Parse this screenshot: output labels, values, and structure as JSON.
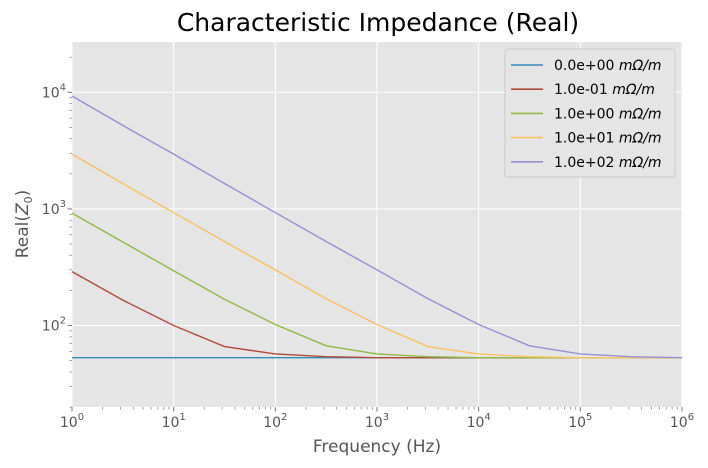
{
  "chart_data": {
    "type": "line",
    "title": "Characteristic Impedance (Real)",
    "xlabel": "Frequency (Hz)",
    "ylabel_text": "Real(",
    "ylabel_var": "Z",
    "ylabel_sub": "0",
    "ylabel_close": ")",
    "x_scale": "log",
    "y_scale": "log",
    "xlim": [
      1,
      1000000
    ],
    "ylim": [
      20,
      27000
    ],
    "grid": true,
    "legend_position": "top-right",
    "x_ticks": [
      {
        "base": "10",
        "exp": "0",
        "value": 1
      },
      {
        "base": "10",
        "exp": "1",
        "value": 10
      },
      {
        "base": "10",
        "exp": "2",
        "value": 100
      },
      {
        "base": "10",
        "exp": "3",
        "value": 1000
      },
      {
        "base": "10",
        "exp": "4",
        "value": 10000
      },
      {
        "base": "10",
        "exp": "5",
        "value": 100000
      },
      {
        "base": "10",
        "exp": "6",
        "value": 1000000
      }
    ],
    "y_ticks": [
      {
        "base": "10",
        "exp": "2",
        "value": 100
      },
      {
        "base": "10",
        "exp": "3",
        "value": 1000
      },
      {
        "base": "10",
        "exp": "4",
        "value": 10000
      }
    ],
    "x": [
      1,
      3.162,
      10,
      31.62,
      100,
      316.2,
      1000,
      3162,
      10000,
      31620,
      100000,
      316200,
      1000000
    ],
    "series": [
      {
        "name_value": "0.0e+00",
        "name_unit": "mΩ/m",
        "color": "#348abd",
        "values": [
          53,
          53,
          53,
          53,
          53,
          53,
          53,
          53,
          53,
          53,
          53,
          53,
          53
        ]
      },
      {
        "name_value": "1.0e-01",
        "name_unit": "mΩ/m",
        "color": "#b24a39",
        "values": [
          290,
          165,
          100,
          66,
          57,
          54,
          53,
          53,
          53,
          53,
          53,
          53,
          53
        ]
      },
      {
        "name_value": "1.0e+00",
        "name_unit": "mΩ/m",
        "color": "#8eba42",
        "values": [
          920,
          520,
          295,
          168,
          102,
          67,
          57,
          54,
          53,
          53,
          53,
          53,
          53
        ]
      },
      {
        "name_value": "1.0e+01",
        "name_unit": "mΩ/m",
        "color": "#fbc15e",
        "values": [
          2950,
          1650,
          930,
          525,
          300,
          170,
          102,
          66,
          57,
          54,
          53,
          53,
          53
        ]
      },
      {
        "name_value": "1.0e+02",
        "name_unit": "mΩ/m",
        "color": "#988ed5",
        "values": [
          9300,
          5200,
          2950,
          1650,
          930,
          525,
          300,
          170,
          102,
          67,
          57,
          54,
          53
        ]
      }
    ]
  }
}
